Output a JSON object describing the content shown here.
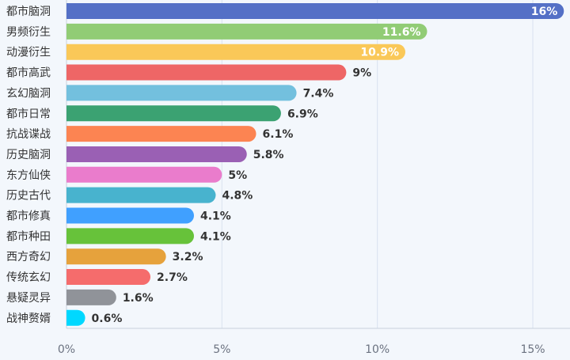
{
  "chart_data": {
    "type": "bar",
    "orientation": "horizontal",
    "categories": [
      "都市脑洞",
      "男频衍生",
      "动漫衍生",
      "都市高武",
      "玄幻脑洞",
      "都市日常",
      "抗战谍战",
      "历史脑洞",
      "东方仙侠",
      "历史古代",
      "都市修真",
      "都市种田",
      "西方奇幻",
      "传统玄幻",
      "悬疑灵异",
      "战神赘婿"
    ],
    "values": [
      16,
      11.6,
      10.9,
      9,
      7.4,
      6.9,
      6.1,
      5.8,
      5,
      4.8,
      4.1,
      4.1,
      3.2,
      2.7,
      1.6,
      0.6
    ],
    "value_labels": [
      "16%",
      "11.6%",
      "10.9%",
      "9%",
      "7.4%",
      "6.9%",
      "6.1%",
      "5.8%",
      "5%",
      "4.8%",
      "4.1%",
      "4.1%",
      "3.2%",
      "2.7%",
      "1.6%",
      "0.6%"
    ],
    "colors": [
      "#5470c6",
      "#91cc75",
      "#fac858",
      "#ee6666",
      "#73c0de",
      "#3ba272",
      "#fc8452",
      "#9a60b4",
      "#ea7ccc",
      "#48b3ce",
      "#40a0ff",
      "#67c23a",
      "#e6a23c",
      "#f56c6c",
      "#909399",
      "#00d8ff"
    ],
    "xlim": [
      0,
      16
    ],
    "xticks": [
      0,
      5,
      10,
      15
    ],
    "xtick_labels": [
      "0%",
      "5%",
      "10%",
      "15%"
    ],
    "grid": true,
    "title": "",
    "xlabel": "",
    "ylabel": ""
  }
}
